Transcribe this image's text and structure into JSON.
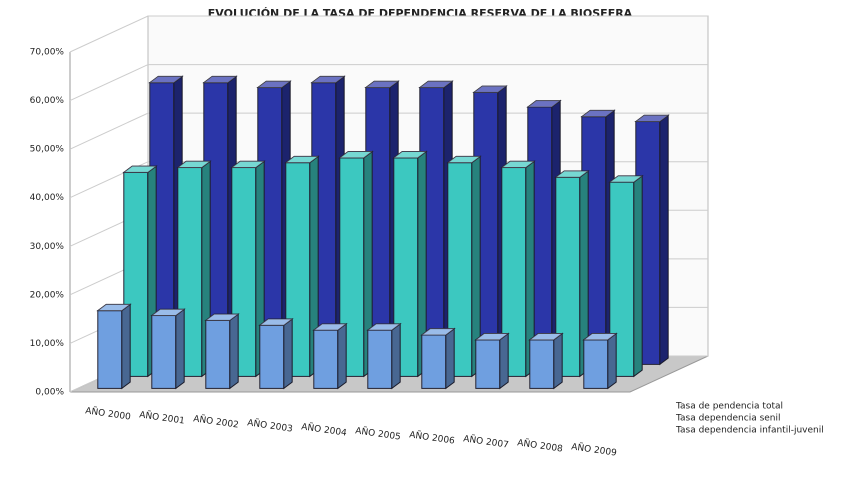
{
  "chart_data": {
    "type": "bar3d",
    "title": "EVOLUCIÓN DE LA TASA DE DEPENDENCIA RESERVA DE LA BIOSFERA",
    "categories": [
      "AÑO 2000",
      "AÑO 2001",
      "AÑO 2002",
      "AÑO 2003",
      "AÑO 2004",
      "AÑO 2005",
      "AÑO 2006",
      "AÑO 2007",
      "AÑO 2008",
      "AÑO 2009"
    ],
    "series": [
      {
        "name": "Tasa de pendencia total",
        "color": "#2b36a8",
        "values": [
          58,
          58,
          57,
          58,
          57,
          57,
          56,
          53,
          51,
          50
        ]
      },
      {
        "name": "Tasa dependencia senil",
        "color": "#3cc8c0",
        "values": [
          42,
          43,
          43,
          44,
          45,
          45,
          44,
          43,
          41,
          40
        ]
      },
      {
        "name": "Tasa dependencia infantil-juvenil",
        "color": "#6f9fe0",
        "values": [
          16,
          15,
          14,
          13,
          12,
          12,
          11,
          10,
          10,
          10
        ]
      }
    ],
    "ylim": [
      0,
      70
    ],
    "yticks": [
      {
        "value": 0,
        "label": "0,00%"
      },
      {
        "value": 10,
        "label": "10,00%"
      },
      {
        "value": 20,
        "label": "20,00%"
      },
      {
        "value": 30,
        "label": "30,00%"
      },
      {
        "value": 40,
        "label": "40,00%"
      },
      {
        "value": 50,
        "label": "50,00%"
      },
      {
        "value": 60,
        "label": "60,00%"
      },
      {
        "value": 70,
        "label": "70,00%"
      }
    ],
    "grid": true
  }
}
